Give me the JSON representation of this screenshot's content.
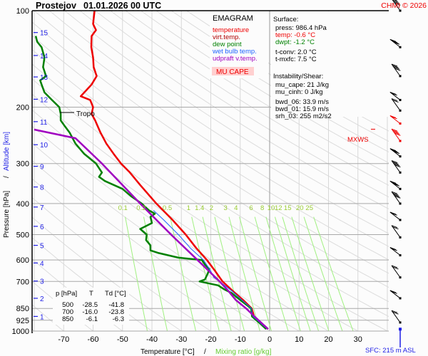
{
  "header": {
    "station": "Prostejov",
    "datetime": "01.01.2026 00 UTC",
    "copyright": "CHMI © 2026"
  },
  "legend": {
    "title": "EMAGRAM",
    "items": [
      {
        "label": "temperature",
        "color": "#ff0000"
      },
      {
        "label": "virt.temp.",
        "color": "#b00000"
      },
      {
        "label": "dew point",
        "color": "#008000"
      },
      {
        "label": "wet bulb temp.",
        "color": "#1e64ff"
      },
      {
        "label": "udpraft v.temp.",
        "color": "#a000c0"
      }
    ],
    "badge": "MU CAPE"
  },
  "surface": {
    "title": "Surface:",
    "press": "press: 986.4 hPa",
    "temp": "temp: -0.6 °C",
    "dwpt": "dwpt: -1.2 °C",
    "tconv": "t-conv: 2.0 °C",
    "tmxfc": "t-mxfc: 7.5 °C"
  },
  "instability": {
    "title": "Instability/Shear:",
    "mu_cape": "mu_cape: 21 J/kg",
    "mu_cinh": "mu_cinh: 0 J/kg",
    "bwd_06": "bwd_06: 33.9 m/s",
    "bwd_01": "bwd_01: 15.9 m/s",
    "srh_03": "srh_03: 255 m2/s2"
  },
  "levels_table": {
    "headers": [
      "p [hPa]",
      "T",
      "Td [°C]"
    ],
    "rows": [
      [
        "500",
        "-28.5",
        "-41.8"
      ],
      [
        "700",
        "-16.0",
        "-23.8"
      ],
      [
        "850",
        "-6.1",
        "-6.3"
      ]
    ]
  },
  "annotations": {
    "tropo": "Tropo",
    "mxws": "MXWS",
    "sfc": "SFC: 215 m ASL"
  },
  "chart_data": {
    "type": "line",
    "title": "Prostejov 01.01.2026 00 UTC",
    "xlabel": "Temperature [°C]",
    "xlabel2": "Mixing ratio [g/kg]",
    "separator": "/",
    "ylabel": "Pressure [hPa]",
    "ylabel2": "Altitude [km]",
    "xlim": [
      -80,
      40
    ],
    "ylim": [
      1000,
      100
    ],
    "x_ticks": [
      -70,
      -60,
      -50,
      -40,
      -30,
      -20,
      -10,
      0,
      10,
      20,
      30
    ],
    "x_tick_labels": [
      "-70",
      "-60",
      "-50",
      "-40",
      "-30",
      "-20",
      "-10",
      "0",
      "10",
      "20",
      "30"
    ],
    "pressure_ticks": [
      100,
      200,
      300,
      400,
      500,
      600,
      700,
      850,
      925,
      1000
    ],
    "pressure_tick_labels": [
      "100",
      "200",
      "300",
      "400",
      "500",
      "600",
      "700",
      "850",
      "925",
      "1000"
    ],
    "altitude_ticks": [
      {
        "km": "1",
        "p": 900
      },
      {
        "km": "2",
        "p": 790
      },
      {
        "km": "3",
        "p": 698
      },
      {
        "km": "4",
        "p": 613
      },
      {
        "km": "5",
        "p": 540
      },
      {
        "km": "6",
        "p": 471
      },
      {
        "km": "7",
        "p": 410
      },
      {
        "km": "8",
        "p": 355
      },
      {
        "km": "9",
        "p": 306
      },
      {
        "km": "10",
        "p": 262
      },
      {
        "km": "11",
        "p": 222
      },
      {
        "km": "12",
        "p": 189
      },
      {
        "km": "13",
        "p": 161
      },
      {
        "km": "14",
        "p": 138
      },
      {
        "km": "15",
        "p": 117
      }
    ],
    "mixing_ratio_labels": [
      "0.1",
      "0.2",
      "0.5",
      "1",
      "1.4",
      "2",
      "3",
      "4",
      "6",
      "8",
      "10",
      "12",
      "15",
      "20",
      "25"
    ],
    "mixing_ratio_values": [
      0.1,
      0.2,
      0.5,
      1,
      1.4,
      2,
      3,
      4,
      6,
      8,
      10,
      12,
      15,
      20,
      25
    ],
    "tropopause_p": 210,
    "series": [
      {
        "name": "temperature",
        "color": "#ee0000",
        "points": [
          [
            986,
            -0.6
          ],
          [
            950,
            -2.5
          ],
          [
            925,
            -4
          ],
          [
            900,
            -5.3
          ],
          [
            850,
            -6.1
          ],
          [
            800,
            -9
          ],
          [
            750,
            -12.5
          ],
          [
            700,
            -16
          ],
          [
            680,
            -17
          ],
          [
            650,
            -18.5
          ],
          [
            600,
            -21.3
          ],
          [
            550,
            -25
          ],
          [
            500,
            -28.5
          ],
          [
            450,
            -33
          ],
          [
            400,
            -38.5
          ],
          [
            350,
            -44
          ],
          [
            320,
            -47.5
          ],
          [
            300,
            -50.5
          ],
          [
            280,
            -53
          ],
          [
            260,
            -55.5
          ],
          [
            240,
            -57.5
          ],
          [
            220,
            -59.3
          ],
          [
            210,
            -60.5
          ],
          [
            200,
            -60
          ],
          [
            190,
            -61
          ],
          [
            185,
            -64.2
          ],
          [
            180,
            -63
          ],
          [
            170,
            -60.5
          ],
          [
            160,
            -58.8
          ],
          [
            150,
            -59.8
          ],
          [
            140,
            -60
          ],
          [
            130,
            -60.6
          ],
          [
            120,
            -60.5
          ],
          [
            115,
            -59
          ],
          [
            110,
            -60
          ],
          [
            100,
            -59.5
          ]
        ]
      },
      {
        "name": "dew point",
        "color": "#008000",
        "points": [
          [
            986,
            -1.2
          ],
          [
            950,
            -3
          ],
          [
            925,
            -4.5
          ],
          [
            900,
            -6
          ],
          [
            850,
            -6.3
          ],
          [
            800,
            -10
          ],
          [
            760,
            -13
          ],
          [
            740,
            -15.5
          ],
          [
            720,
            -17.5
          ],
          [
            700,
            -23.8
          ],
          [
            690,
            -22
          ],
          [
            660,
            -21
          ],
          [
            640,
            -20.5
          ],
          [
            620,
            -22
          ],
          [
            600,
            -23
          ],
          [
            590,
            -31
          ],
          [
            570,
            -38
          ],
          [
            560,
            -40.5
          ],
          [
            540,
            -40.5
          ],
          [
            520,
            -42
          ],
          [
            500,
            -41.8
          ],
          [
            480,
            -44
          ],
          [
            460,
            -40
          ],
          [
            440,
            -40.5
          ],
          [
            430,
            -39
          ],
          [
            420,
            -41
          ],
          [
            400,
            -43.5
          ],
          [
            380,
            -47
          ],
          [
            360,
            -50
          ],
          [
            340,
            -56
          ],
          [
            330,
            -58
          ],
          [
            320,
            -57
          ],
          [
            300,
            -59
          ],
          [
            280,
            -63
          ],
          [
            260,
            -66
          ],
          [
            240,
            -68
          ],
          [
            230,
            -69.5
          ],
          [
            220,
            -71
          ],
          [
            210,
            -71
          ],
          [
            200,
            -71.5
          ],
          [
            190,
            -74
          ],
          [
            180,
            -76.5
          ],
          [
            170,
            -77.5
          ],
          [
            165,
            -78
          ],
          [
            160,
            -76
          ],
          [
            150,
            -77
          ],
          [
            140,
            -76.5
          ],
          [
            130,
            -77.5
          ],
          [
            125,
            -79
          ],
          [
            120,
            -79.5
          ]
        ]
      },
      {
        "name": "wet bulb temp.",
        "color": "#1e64ff",
        "points": [
          [
            986,
            -0.8
          ],
          [
            900,
            -5.7
          ],
          [
            850,
            -6.2
          ],
          [
            750,
            -12.8
          ],
          [
            700,
            -17
          ],
          [
            680,
            -19
          ],
          [
            650,
            -20
          ],
          [
            600,
            -22.5
          ],
          [
            550,
            -27
          ],
          [
            500,
            -31
          ],
          [
            450,
            -36
          ],
          [
            420,
            -39.5
          ]
        ]
      },
      {
        "name": "udpraft v.temp.",
        "color": "#a000c0",
        "points": [
          [
            986,
            -0.5
          ],
          [
            900,
            -5.2
          ],
          [
            850,
            -8
          ],
          [
            800,
            -11.5
          ],
          [
            750,
            -14
          ],
          [
            700,
            -17
          ],
          [
            600,
            -24.5
          ],
          [
            500,
            -33.5
          ],
          [
            400,
            -44
          ],
          [
            300,
            -57
          ],
          [
            250,
            -66
          ],
          [
            235,
            -80
          ]
        ]
      }
    ],
    "wind_barbs": [
      {
        "p": 100
      },
      {
        "p": 130
      },
      {
        "p": 160
      },
      {
        "p": 190
      },
      {
        "p": 205
      },
      {
        "p": 225
      },
      {
        "p": 255
      },
      {
        "p": 285
      },
      {
        "p": 320
      },
      {
        "p": 360
      },
      {
        "p": 400
      },
      {
        "p": 450
      },
      {
        "p": 510
      },
      {
        "p": 580
      },
      {
        "p": 680
      },
      {
        "p": 790
      },
      {
        "p": 940
      }
    ],
    "mxws_p": 238
  }
}
